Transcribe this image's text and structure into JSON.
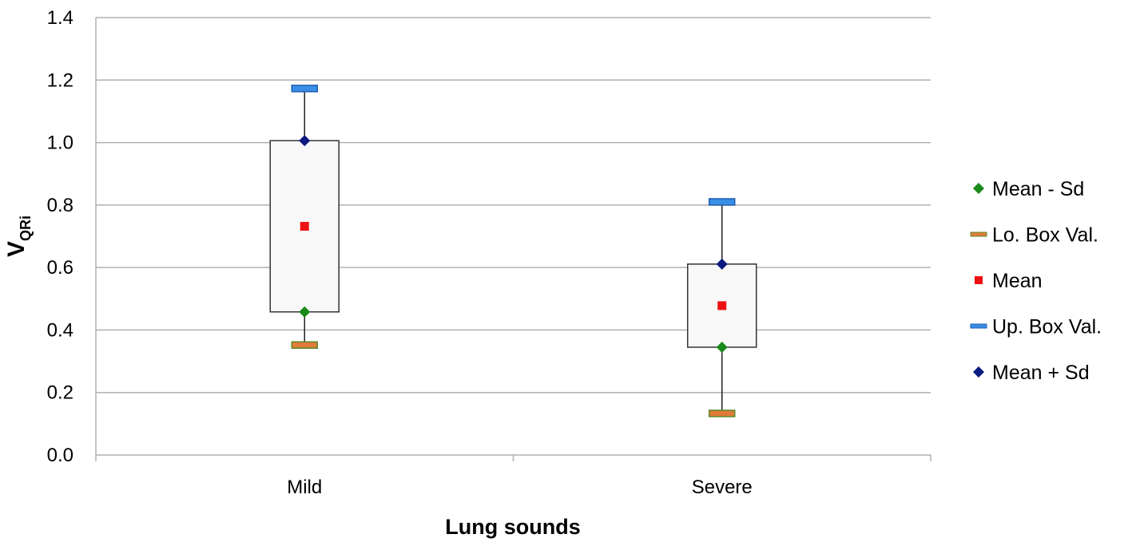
{
  "chart_data": {
    "type": "box",
    "title": "",
    "xlabel": "Lung sounds",
    "ylabel": {
      "main": "V",
      "subscript": "QRi"
    },
    "ylim": [
      0,
      1.4
    ],
    "ytick_step": 0.2,
    "ytick_labels": [
      "0.0",
      "0.2",
      "0.4",
      "0.6",
      "0.8",
      "1.0",
      "1.2",
      "1.4"
    ],
    "grid": true,
    "legend_position": "right",
    "categories": [
      "Mild",
      "Severe"
    ],
    "series": [
      {
        "name": "Mean - Sd",
        "values": [
          0.458,
          0.345
        ],
        "marker": "diamond",
        "color": "#1a8a1a"
      },
      {
        "name": "Lo. Box Val.",
        "values": [
          0.352,
          0.133
        ],
        "marker": "dash",
        "color": "#e07b39",
        "edge": "#5a8a2a"
      },
      {
        "name": "Mean",
        "values": [
          0.732,
          0.478
        ],
        "marker": "square",
        "color": "#ee1111"
      },
      {
        "name": "Up. Box Val.",
        "values": [
          1.173,
          0.81
        ],
        "marker": "dash",
        "color": "#3a8ee6",
        "edge": "#1f5fb0"
      },
      {
        "name": "Mean + Sd",
        "values": [
          1.006,
          0.611
        ],
        "marker": "diamond",
        "color": "#0a1a80"
      }
    ],
    "box_fill": "#f8f8f8",
    "box_edge": "#333333"
  }
}
